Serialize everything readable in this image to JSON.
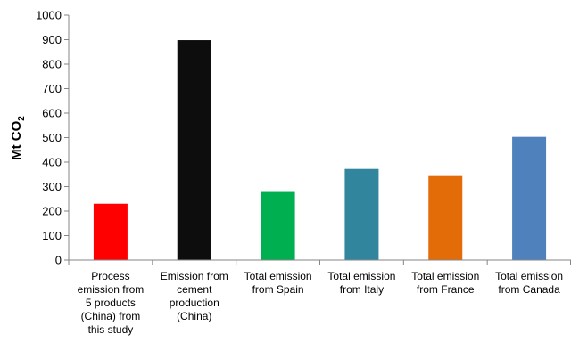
{
  "chart_data": {
    "type": "bar",
    "title": "",
    "xlabel": "",
    "ylabel": "Mt CO",
    "ylabel_subscript": "2",
    "ylim": [
      0,
      1000
    ],
    "yticks": [
      0,
      100,
      200,
      300,
      400,
      500,
      600,
      700,
      800,
      900,
      1000
    ],
    "grid": false,
    "legend": "none",
    "categories": [
      [
        "Process",
        "emission from",
        "5 products",
        "(China) from",
        "this study"
      ],
      [
        "Emission from",
        "cement",
        "production",
        "(China)"
      ],
      [
        "Total emission",
        "from Spain"
      ],
      [
        "Total emission",
        "from Italy"
      ],
      [
        "Total emission",
        "from France"
      ],
      [
        "Total emission",
        "from Canada"
      ]
    ],
    "values": [
      230,
      898,
      278,
      372,
      343,
      503
    ],
    "colors": [
      "#ff0000",
      "#0d0d0d",
      "#00b050",
      "#31859c",
      "#e36c09",
      "#4f81bd"
    ]
  }
}
